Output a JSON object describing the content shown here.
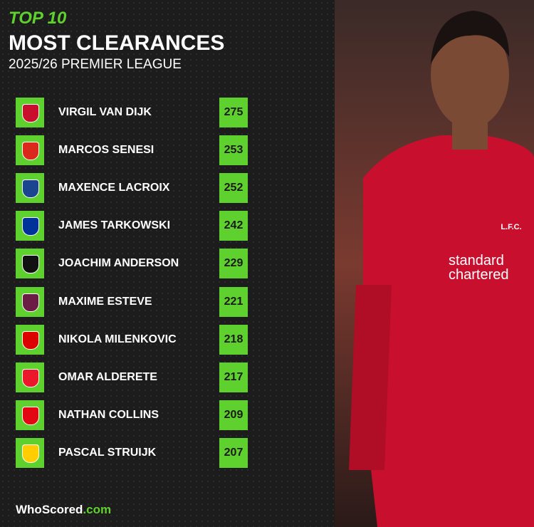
{
  "header": {
    "kicker": "TOP 10",
    "title": "MOST CLEARANCES",
    "subtitle": "2025/26 PREMIER LEAGUE"
  },
  "rows": [
    {
      "player": "VIRGIL VAN DIJK",
      "value": 275,
      "crest": "#c8102e"
    },
    {
      "player": "MARCOS SENESI",
      "value": 253,
      "crest": "#da291c"
    },
    {
      "player": "MAXENCE LACROIX",
      "value": 252,
      "crest": "#1b458f"
    },
    {
      "player": "JAMES TARKOWSKI",
      "value": 242,
      "crest": "#003399"
    },
    {
      "player": "JOACHIM ANDERSON",
      "value": 229,
      "crest": "#111111"
    },
    {
      "player": "MAXIME ESTEVE",
      "value": 221,
      "crest": "#6c1d45"
    },
    {
      "player": "NIKOLA MILENKOVIC",
      "value": 218,
      "crest": "#dd0000"
    },
    {
      "player": "OMAR ALDERETE",
      "value": 217,
      "crest": "#eb172b"
    },
    {
      "player": "NATHAN COLLINS",
      "value": 209,
      "crest": "#e30613"
    },
    {
      "player": "PASCAL STRUIJK",
      "value": 207,
      "crest": "#ffcd00"
    }
  ],
  "photo": {
    "crest": "L.F.C.",
    "sponsor_1": "standard",
    "sponsor_2": "chartered"
  },
  "footer": {
    "brand": "WhoScored",
    "domain": ".com"
  }
}
